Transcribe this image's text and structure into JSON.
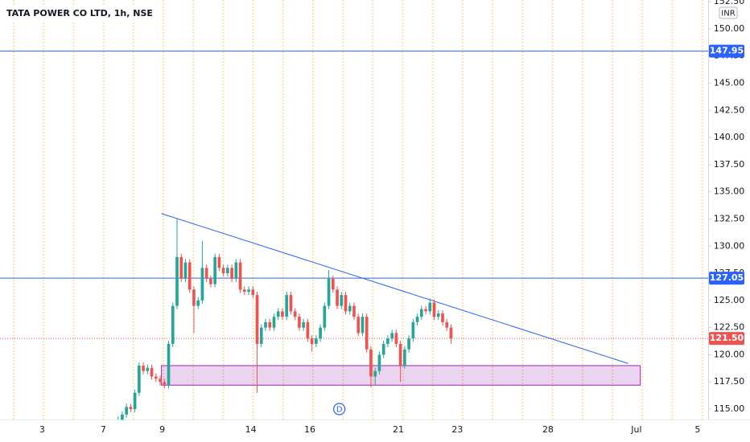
{
  "chart_data": {
    "type": "candlestick",
    "title": "TATA POWER CO LTD, 1h, NSE",
    "currency": "INR",
    "up_color": "#26a69a",
    "down_color": "#ef5350",
    "xlim": [
      0,
      168
    ],
    "ylim": [
      114.04,
      152.66
    ],
    "xticks": [
      {
        "value": 10,
        "label": "3"
      },
      {
        "value": 24.5,
        "label": "7"
      },
      {
        "value": 38.5,
        "label": "9"
      },
      {
        "value": 59.5,
        "label": "14"
      },
      {
        "value": 73.5,
        "label": "16"
      },
      {
        "value": 94.5,
        "label": "21"
      },
      {
        "value": 108.5,
        "label": "23"
      },
      {
        "value": 130,
        "label": "28"
      },
      {
        "value": 151,
        "label": "Jul"
      },
      {
        "value": 165.5,
        "label": "5"
      }
    ],
    "yticks": [
      {
        "value": 115,
        "label": "115.00"
      },
      {
        "value": 117.5,
        "label": "117.50"
      },
      {
        "value": 120,
        "label": "120.00"
      },
      {
        "value": 122.5,
        "label": "122.50"
      },
      {
        "value": 125,
        "label": "125.00"
      },
      {
        "value": 127.5,
        "label": "127.50"
      },
      {
        "value": 130,
        "label": "130.00"
      },
      {
        "value": 132.5,
        "label": "132.50"
      },
      {
        "value": 135,
        "label": "135.00"
      },
      {
        "value": 137.5,
        "label": "137.50"
      },
      {
        "value": 140,
        "label": "140.00"
      },
      {
        "value": 142.5,
        "label": "142.50"
      },
      {
        "value": 145,
        "label": "145.00"
      },
      {
        "value": 147.5,
        "label": "147.50"
      },
      {
        "value": 150,
        "label": "150.00"
      },
      {
        "value": 152.5,
        "label": "152.50"
      }
    ],
    "x": [
      27,
      28,
      29,
      30,
      31,
      32,
      33,
      34,
      35,
      36,
      37,
      38,
      39,
      40,
      41,
      42,
      43,
      44,
      45,
      46,
      47,
      48,
      49,
      50,
      51,
      52,
      53,
      54,
      55,
      56,
      57,
      58,
      59,
      60,
      61,
      62,
      63,
      64,
      65,
      66,
      67,
      68,
      69,
      70,
      71,
      72,
      73,
      74,
      75,
      76,
      77,
      78,
      79,
      80,
      81,
      82,
      83,
      84,
      85,
      86,
      87,
      88,
      89,
      90,
      91,
      92,
      93,
      94,
      95,
      96,
      97,
      98,
      99,
      100,
      101,
      102,
      103,
      104,
      105,
      106,
      107
    ],
    "open": [
      113,
      113.5,
      114,
      114.5,
      115.2,
      115,
      116.5,
      119,
      118.5,
      118.8,
      118,
      117.8,
      117.5,
      117.2,
      121,
      124.5,
      129,
      127,
      128.5,
      126,
      124.5,
      125,
      128,
      127,
      126.5,
      129,
      128,
      127.5,
      128,
      127,
      128.5,
      126,
      125.8,
      126,
      125.5,
      121,
      122.5,
      123,
      122.5,
      123.5,
      124,
      123.5,
      125.5,
      124,
      123.5,
      122.5,
      123,
      121.5,
      121,
      121.5,
      122.5,
      124.5,
      127,
      126,
      124.5,
      125.5,
      124,
      124.5,
      123.5,
      122,
      123.5,
      120.5,
      118,
      118.5,
      120,
      121,
      121.5,
      122,
      121,
      119,
      120.5,
      121.5,
      123,
      123.5,
      124.2,
      124,
      124.8,
      123.5,
      123.8,
      123,
      122.5
    ],
    "high": [
      113.8,
      114.3,
      114.8,
      115.5,
      115.5,
      116.8,
      119.3,
      119.3,
      119.1,
      119.1,
      118.3,
      118.1,
      117.8,
      121.3,
      124.8,
      132.5,
      129.3,
      128.8,
      128.8,
      126.3,
      125.3,
      130.5,
      128.3,
      127.3,
      129.3,
      129.3,
      128.3,
      128.3,
      128.3,
      128.8,
      128.8,
      126.3,
      126.3,
      126.3,
      125.8,
      122.8,
      123.3,
      123.3,
      123.8,
      124.3,
      124.3,
      125.8,
      125.8,
      124.3,
      123.8,
      123.3,
      123.3,
      121.8,
      121.8,
      122.8,
      124.8,
      127.8,
      127.3,
      126.3,
      125.8,
      125.8,
      124.8,
      124.8,
      123.8,
      123.8,
      123.8,
      120.8,
      118.8,
      120.3,
      121.3,
      121.8,
      122.3,
      122.3,
      121.3,
      120.8,
      121.8,
      123.3,
      123.8,
      124.5,
      124.5,
      125.2,
      125.1,
      124.1,
      124.1,
      123.3,
      122.8
    ],
    "low": [
      112.7,
      113.2,
      113.7,
      114.2,
      114.7,
      114.7,
      116.2,
      118.2,
      118.2,
      117.7,
      117.5,
      117.2,
      116.9,
      116.9,
      120.7,
      124.2,
      126.7,
      126.7,
      125.7,
      122,
      124.2,
      124.7,
      126.7,
      126.2,
      126.2,
      127.7,
      127.2,
      127.2,
      126.7,
      126.7,
      125.7,
      125.5,
      125.5,
      125.2,
      116.5,
      120.7,
      122.2,
      122.2,
      122.2,
      123.2,
      123.2,
      123.2,
      123.7,
      123.2,
      122.2,
      122.2,
      121.2,
      120.3,
      120.7,
      121.2,
      122.2,
      124.2,
      125.7,
      124.2,
      124.2,
      123.7,
      123.7,
      123.2,
      121.7,
      121.7,
      120.2,
      117,
      117.2,
      118.2,
      119.7,
      120.7,
      121.2,
      120.7,
      117.5,
      118.7,
      120.2,
      121.2,
      122.7,
      123.2,
      123.7,
      123.7,
      123.2,
      123.2,
      122.7,
      122.2,
      121
    ],
    "close": [
      113.5,
      114,
      114.5,
      115.2,
      115,
      116.5,
      119,
      118.5,
      118.8,
      118,
      117.8,
      117.5,
      117.2,
      121,
      124.5,
      129,
      127,
      128.5,
      126,
      124.5,
      125,
      128,
      127,
      126.5,
      129,
      128,
      127.5,
      128,
      127,
      128.5,
      126,
      125.8,
      126,
      125.5,
      121,
      122.5,
      123,
      122.5,
      123.5,
      124,
      123.5,
      125.5,
      124,
      123.5,
      122.5,
      123,
      121.5,
      121,
      121.5,
      122.5,
      124.5,
      127,
      126,
      124.5,
      125.5,
      124,
      124.5,
      123.5,
      122,
      123.5,
      120.5,
      118,
      118.5,
      120,
      121,
      121.5,
      122,
      121,
      119,
      120.5,
      121.5,
      123,
      123.5,
      124.2,
      124,
      124.8,
      123.5,
      123.8,
      123,
      122.5,
      121.5
    ],
    "price_lines": [
      {
        "value": 147.95,
        "label": "147.95",
        "color": "#2962ff"
      },
      {
        "value": 127.05,
        "label": "127.05",
        "color": "#2962ff"
      },
      {
        "value": 121.5,
        "label": "121.50",
        "color": "#ef5350"
      }
    ],
    "trendline": {
      "x": [
        38.3,
        149
      ],
      "y": [
        133,
        119.2
      ],
      "color": "#2962ff"
    },
    "zone": {
      "x": [
        38.3,
        151.9
      ],
      "y": [
        117.2,
        119
      ],
      "color": "#9c27b0"
    },
    "marker": {
      "x": 80.5,
      "label": "D"
    }
  }
}
